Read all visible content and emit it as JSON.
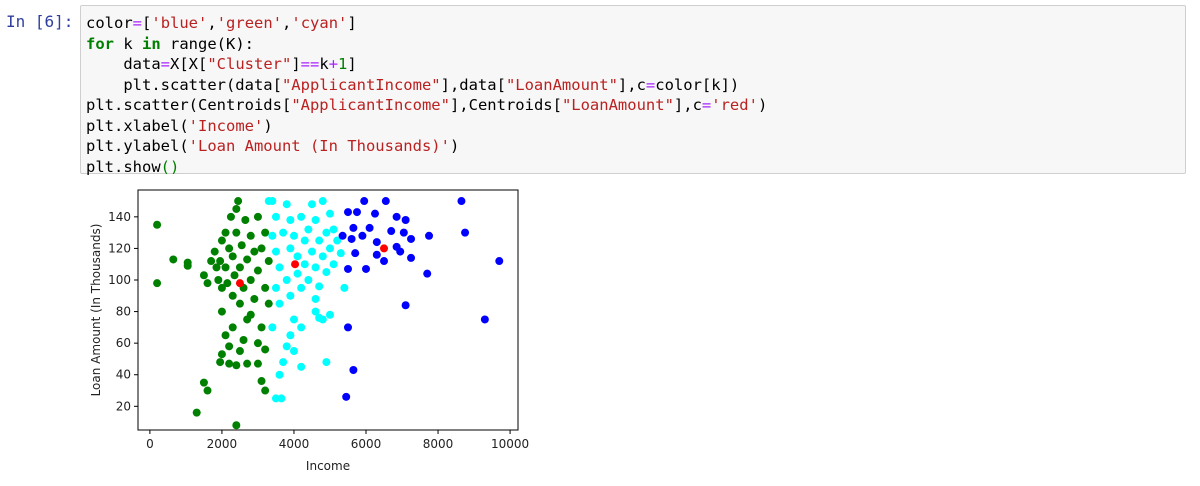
{
  "cell": {
    "prompt": "In [6]:",
    "code": [
      [
        {
          "text": "color",
          "color": "#000000"
        },
        {
          "text": "=",
          "color": "#aa22ff"
        },
        {
          "text": "[",
          "color": "#000000"
        },
        {
          "text": "'blue'",
          "color": "#ba2121"
        },
        {
          "text": ",",
          "color": "#000000"
        },
        {
          "text": "'green'",
          "color": "#ba2121"
        },
        {
          "text": ",",
          "color": "#000000"
        },
        {
          "text": "'cyan'",
          "color": "#ba2121"
        },
        {
          "text": "]",
          "color": "#000000"
        }
      ],
      [
        {
          "text": "for",
          "color": "#008000"
        },
        {
          "text": " k ",
          "color": "#000000"
        },
        {
          "text": "in",
          "color": "#008000"
        },
        {
          "text": " range(K):",
          "color": "#000000"
        }
      ],
      [
        {
          "text": "    data",
          "color": "#000000"
        },
        {
          "text": "=",
          "color": "#aa22ff"
        },
        {
          "text": "X[X[",
          "color": "#000000"
        },
        {
          "text": "\"Cluster\"",
          "color": "#ba2121"
        },
        {
          "text": "]",
          "color": "#000000"
        },
        {
          "text": "==",
          "color": "#aa22ff"
        },
        {
          "text": "k",
          "color": "#000000"
        },
        {
          "text": "+",
          "color": "#aa22ff"
        },
        {
          "text": "1",
          "color": "#008000"
        },
        {
          "text": "]",
          "color": "#000000"
        }
      ],
      [
        {
          "text": "    plt.scatter(data[",
          "color": "#000000"
        },
        {
          "text": "\"ApplicantIncome\"",
          "color": "#ba2121"
        },
        {
          "text": "],data[",
          "color": "#000000"
        },
        {
          "text": "\"LoanAmount\"",
          "color": "#ba2121"
        },
        {
          "text": "],c",
          "color": "#000000"
        },
        {
          "text": "=",
          "color": "#aa22ff"
        },
        {
          "text": "color[k])",
          "color": "#000000"
        }
      ],
      [
        {
          "text": "plt.scatter(Centroids[",
          "color": "#000000"
        },
        {
          "text": "\"ApplicantIncome\"",
          "color": "#ba2121"
        },
        {
          "text": "],Centroids[",
          "color": "#000000"
        },
        {
          "text": "\"LoanAmount\"",
          "color": "#ba2121"
        },
        {
          "text": "],c",
          "color": "#000000"
        },
        {
          "text": "=",
          "color": "#aa22ff"
        },
        {
          "text": "'red'",
          "color": "#ba2121"
        },
        {
          "text": ")",
          "color": "#000000"
        }
      ],
      [
        {
          "text": "plt.xlabel(",
          "color": "#000000"
        },
        {
          "text": "'Income'",
          "color": "#ba2121"
        },
        {
          "text": ")",
          "color": "#000000"
        }
      ],
      [
        {
          "text": "plt.ylabel(",
          "color": "#000000"
        },
        {
          "text": "'Loan Amount (In Thousands)'",
          "color": "#ba2121"
        },
        {
          "text": ")",
          "color": "#000000"
        }
      ],
      [
        {
          "text": "plt.show",
          "color": "#000000"
        },
        {
          "text": "()",
          "color": "#008000"
        }
      ]
    ]
  },
  "chart_data": {
    "type": "scatter",
    "x_label": "Income",
    "y_label": "Loan Amount (In Thousands)",
    "xlim": [
      -330,
      10220
    ],
    "ylim": [
      5,
      157
    ],
    "xticks": [
      0,
      2000,
      4000,
      6000,
      8000,
      10000
    ],
    "yticks": [
      20,
      40,
      60,
      80,
      100,
      120,
      140
    ],
    "series": [
      {
        "color": "#008000",
        "x": [
          200,
          200,
          650,
          1050,
          1050,
          1500,
          1600,
          1700,
          1800,
          1850,
          1900,
          1950,
          2000,
          2000,
          2100,
          2100,
          2150,
          2200,
          2250,
          2300,
          2300,
          2350,
          2400,
          2400,
          2450,
          2500,
          2500,
          2550,
          2600,
          2650,
          2700,
          2700,
          2800,
          2800,
          2900,
          2900,
          3000,
          3000,
          3100,
          3100,
          3200,
          3200,
          3300,
          2000,
          2100,
          2000,
          1950,
          2200,
          2300,
          2400,
          2500,
          2600,
          2700,
          2800,
          3000,
          3200,
          3300,
          1500,
          1600,
          1300,
          2400,
          3100,
          3200,
          2200,
          3000
        ],
        "values": [
          135,
          98,
          113,
          111,
          109,
          103,
          98,
          112,
          118,
          108,
          100,
          112,
          95,
          125,
          130,
          108,
          98,
          120,
          140,
          115,
          90,
          103,
          130,
          145,
          150,
          108,
          85,
          122,
          95,
          138,
          113,
          75,
          128,
          100,
          118,
          88,
          140,
          106,
          120,
          70,
          130,
          95,
          112,
          80,
          65,
          53,
          48,
          58,
          70,
          46,
          55,
          62,
          47,
          78,
          60,
          56,
          85,
          35,
          30,
          16,
          8,
          36,
          30,
          47,
          47
        ]
      },
      {
        "color": "#00ffff",
        "x": [
          3300,
          3400,
          3500,
          3400,
          3500,
          3600,
          3500,
          3600,
          3700,
          3800,
          3900,
          3900,
          3800,
          3900,
          4000,
          4100,
          4100,
          4200,
          4200,
          4300,
          4300,
          4400,
          4400,
          4500,
          4500,
          4600,
          4600,
          4600,
          4700,
          4700,
          4800,
          4800,
          4800,
          4900,
          4900,
          5000,
          5000,
          5100,
          5100,
          5200,
          5300,
          5400,
          4600,
          4700,
          5000,
          4200,
          3900,
          3800,
          4000,
          3700,
          3600,
          4200,
          4900,
          3500,
          3650,
          4000,
          3400
        ],
        "values": [
          150,
          150,
          140,
          128,
          118,
          108,
          95,
          85,
          130,
          148,
          138,
          120,
          100,
          90,
          128,
          115,
          104,
          140,
          95,
          125,
          110,
          132,
          100,
          148,
          118,
          138,
          108,
          88,
          125,
          96,
          150,
          115,
          75,
          130,
          105,
          120,
          142,
          110,
          132,
          125,
          117,
          95,
          80,
          76,
          78,
          70,
          65,
          58,
          55,
          48,
          40,
          45,
          48,
          25,
          25,
          75,
          70
        ]
      },
      {
        "color": "#0000ff",
        "x": [
          8650,
          8750,
          9700,
          9300,
          7100,
          7700,
          7750,
          7250,
          7100,
          6850,
          6550,
          6250,
          5950,
          5750,
          5500,
          5650,
          5600,
          5900,
          6100,
          6300,
          6700,
          6850,
          7250,
          5700,
          5500,
          6000,
          6500,
          6300,
          5500,
          5650,
          5450,
          7050,
          6950,
          5350
        ],
        "values": [
          150,
          130,
          112,
          75,
          84,
          104,
          128,
          126,
          138,
          140,
          150,
          142,
          150,
          143,
          143,
          133,
          126,
          128,
          133,
          124,
          131,
          121,
          114,
          117,
          107,
          107,
          112,
          116,
          70,
          43,
          26,
          130,
          118,
          128
        ]
      },
      {
        "color": "#ff0000",
        "x": [
          2500,
          4030,
          6500
        ],
        "values": [
          98,
          110,
          120
        ]
      }
    ]
  }
}
